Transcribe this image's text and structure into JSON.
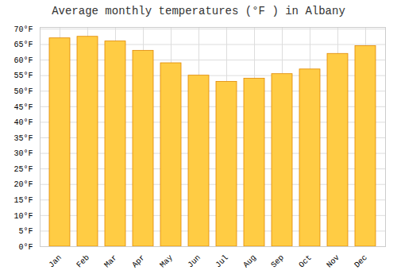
{
  "chart_data": {
    "type": "bar",
    "title": "Average monthly temperatures (°F ) in Albany",
    "categories": [
      "Jan",
      "Feb",
      "Mar",
      "Apr",
      "May",
      "Jun",
      "Jul",
      "Aug",
      "Sep",
      "Oct",
      "Nov",
      "Dec"
    ],
    "values": [
      67,
      67.5,
      66,
      63,
      59,
      55,
      53,
      54,
      55.5,
      57,
      62,
      64.5
    ],
    "color": "#FFCC44",
    "ylim": [
      0,
      70.5
    ],
    "yticks": [
      {
        "value": 0,
        "label": "0°F"
      },
      {
        "value": 5,
        "label": "5°F"
      },
      {
        "value": 10,
        "label": "10°F"
      },
      {
        "value": 15,
        "label": "15°F"
      },
      {
        "value": 20,
        "label": "20°F"
      },
      {
        "value": 25,
        "label": "25°F"
      },
      {
        "value": 30,
        "label": "30°F"
      },
      {
        "value": 35,
        "label": "35°F"
      },
      {
        "value": 40,
        "label": "40°F"
      },
      {
        "value": 45,
        "label": "45°F"
      },
      {
        "value": 50,
        "label": "50°F"
      },
      {
        "value": 55,
        "label": "55°F"
      },
      {
        "value": 60,
        "label": "60°F"
      },
      {
        "value": 65,
        "label": "65°F"
      },
      {
        "value": 70,
        "label": "70°F"
      }
    ],
    "grid": true
  }
}
